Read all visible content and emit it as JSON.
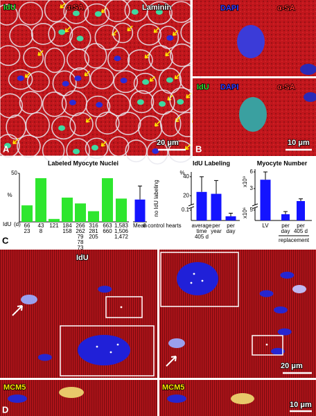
{
  "panels": {
    "A": {
      "label": "A",
      "channels": [
        "IdU",
        "α-SA",
        "Laminin"
      ],
      "scale_bar": "20 μm"
    },
    "B": {
      "label": "B",
      "top_channels": [
        "DAPI",
        "α-SA"
      ],
      "bottom_channels": [
        "IdU",
        "DAPI",
        "α-SA"
      ],
      "scale_bar": "10 μm"
    },
    "C": {
      "label": "C"
    },
    "D": {
      "label": "D",
      "top_label": "IdU",
      "top_scale_bar": "20 μm",
      "bottom_labels": [
        "MCM5",
        "MCM5"
      ],
      "bottom_scale_bar": "10 μm"
    }
  },
  "chart_data": [
    {
      "type": "bar",
      "title": "Labeled Myocyte Nuclei",
      "ylabel": "%",
      "ylim": [
        0,
        50
      ],
      "yticks": [
        50
      ],
      "row_labels": [
        "IdU",
        "(d)"
      ],
      "categories": [
        [
          "66",
          "23"
        ],
        [
          "43",
          "8"
        ],
        [
          "121"
        ],
        [
          "184",
          "158"
        ],
        [
          "266",
          "262",
          "79",
          "78",
          "73"
        ],
        [
          "316",
          "281",
          "205"
        ],
        [
          "663",
          "660"
        ],
        [
          "1,583",
          "1,506",
          "1,472"
        ],
        [
          "Mean"
        ]
      ],
      "values": [
        17,
        45,
        3,
        25,
        19,
        11,
        45,
        24,
        23
      ],
      "errors": [
        null,
        null,
        null,
        null,
        null,
        null,
        null,
        null,
        14
      ],
      "colors": [
        "#2ee62e",
        "#2ee62e",
        "#2ee62e",
        "#2ee62e",
        "#2ee62e",
        "#2ee62e",
        "#2ee62e",
        "#2ee62e",
        "#1414ff"
      ],
      "annotations": [
        "no IdU labeling",
        "6 control hearts"
      ]
    },
    {
      "type": "broken-bar",
      "title": "IdU Labeling",
      "ylabel": "%",
      "ylim": [
        0,
        45
      ],
      "axis_break": [
        0.12,
        10
      ],
      "yticks": [
        40,
        20,
        0.1
      ],
      "categories": [
        [
          "average",
          "time",
          "405 d"
        ],
        [
          "per",
          "year"
        ],
        [
          "per",
          "day"
        ]
      ],
      "values": [
        24,
        22,
        0.04
      ],
      "errors": [
        16,
        14,
        0.03
      ],
      "color": "#1414ff"
    },
    {
      "type": "dual-bar",
      "title": "Myocyte Number",
      "ylabel": "x10⁹",
      "y2label": "x10⁶",
      "ylim": [
        0,
        6.5
      ],
      "yticks": [
        3,
        6
      ],
      "y2lim": [
        0,
        6
      ],
      "y2ticks": [
        5
      ],
      "categories": [
        [
          "LV"
        ],
        [
          "per",
          "day"
        ],
        [
          "per",
          "405 d"
        ]
      ],
      "axes": [
        "y",
        "y2",
        "y"
      ],
      "values": [
        4.6,
        3,
        0.75
      ],
      "errors": [
        1.4,
        1.3,
        0.4
      ],
      "color": "#1414ff",
      "group_label": "replacement"
    }
  ]
}
